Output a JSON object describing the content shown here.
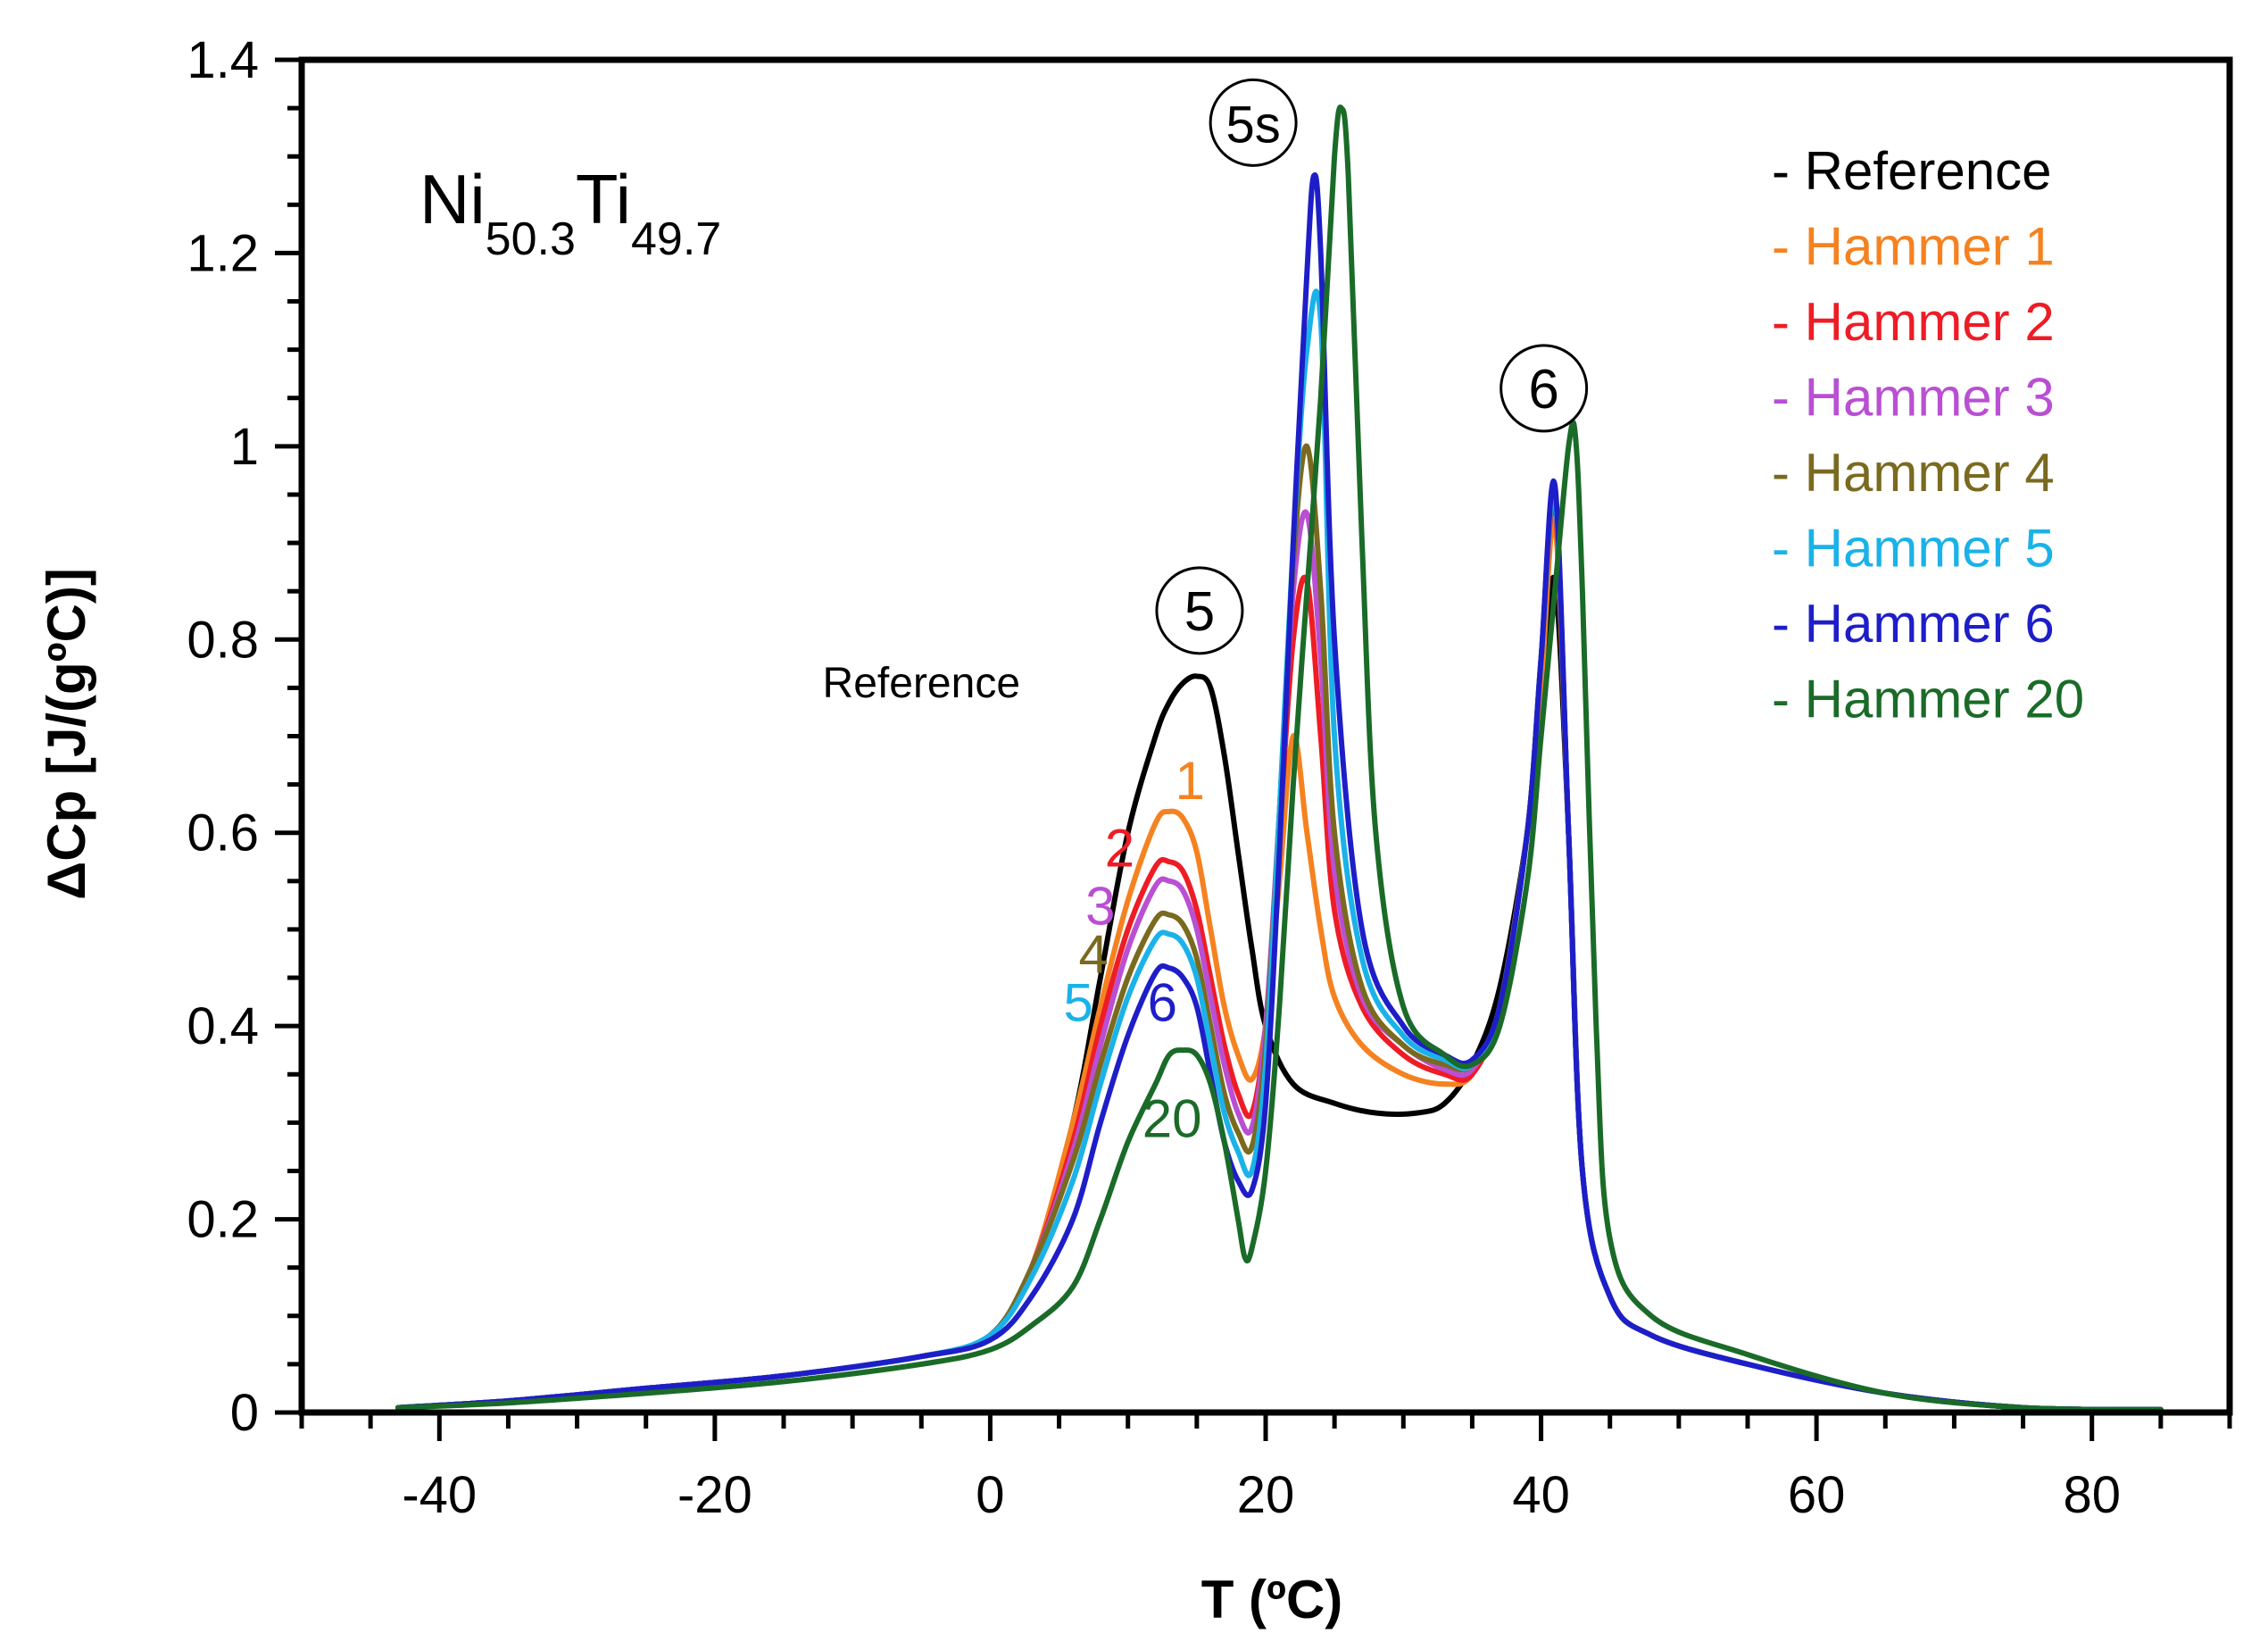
{
  "chart_data": {
    "type": "line",
    "title": "",
    "xlabel": "T (ºC)",
    "ylabel": "ΔCp  [J/(gºC)]",
    "xlim": [
      -50,
      90
    ],
    "ylim": [
      0,
      1.4
    ],
    "x_ticks": [
      -40,
      -20,
      0,
      20,
      40,
      60,
      80
    ],
    "x_tick_labels": [
      "-40",
      "-20",
      "0",
      "20",
      "40",
      "60",
      "80"
    ],
    "y_ticks": [
      0,
      0.2,
      0.4,
      0.6,
      0.8,
      1,
      1.2,
      1.4
    ],
    "y_tick_labels": [
      "0",
      "0.2",
      "0.4",
      "0.6",
      "0.8",
      "1",
      "1.2",
      "1.4"
    ],
    "grid": false,
    "legend_position": "top-right",
    "alloy": {
      "element1": "Ni",
      "sub1": "50.3",
      "element2": "Ti",
      "sub2": "49.7"
    },
    "peak_annotations": [
      {
        "label": "5",
        "x": 15.2,
        "y": 0.83
      },
      {
        "label": "5s",
        "x": 19.1,
        "y": 1.335
      },
      {
        "label": "6",
        "x": 40.2,
        "y": 1.06
      }
    ],
    "series": [
      {
        "name": "- Reference",
        "color": "#000000",
        "curve_label": "Reference",
        "label_x": -5,
        "label_y": 0.74,
        "x": [
          -43,
          -35,
          -25,
          -15,
          -5,
          0,
          3,
          6,
          8,
          10,
          12,
          13,
          14,
          15,
          16,
          17,
          18,
          19,
          20,
          22,
          25,
          28,
          31,
          33,
          35,
          37,
          39,
          40,
          41,
          42,
          43,
          45,
          48,
          55,
          65,
          75,
          85
        ],
        "y": [
          0.005,
          0.012,
          0.025,
          0.038,
          0.058,
          0.08,
          0.15,
          0.3,
          0.45,
          0.6,
          0.7,
          0.735,
          0.755,
          0.762,
          0.75,
          0.68,
          0.58,
          0.48,
          0.4,
          0.34,
          0.32,
          0.31,
          0.31,
          0.32,
          0.36,
          0.44,
          0.6,
          0.75,
          0.86,
          0.6,
          0.25,
          0.12,
          0.08,
          0.05,
          0.02,
          0.005,
          0.003
        ]
      },
      {
        "name": "- Hammer 1",
        "color": "#f58220",
        "curve_label": "1",
        "label_x": 14.5,
        "label_y": 0.635,
        "x": [
          -43,
          -35,
          -25,
          -15,
          -5,
          0,
          3,
          6,
          8,
          10,
          12,
          13,
          14,
          15,
          16,
          17,
          18,
          19,
          20,
          21,
          22,
          23,
          24,
          25,
          27,
          30,
          33,
          35,
          37,
          39,
          40,
          41,
          42,
          43,
          45,
          48,
          55,
          65,
          75,
          85
        ],
        "y": [
          0.005,
          0.012,
          0.025,
          0.038,
          0.058,
          0.08,
          0.15,
          0.3,
          0.42,
          0.53,
          0.61,
          0.622,
          0.615,
          0.58,
          0.5,
          0.42,
          0.37,
          0.345,
          0.4,
          0.55,
          0.7,
          0.6,
          0.5,
          0.43,
          0.38,
          0.35,
          0.34,
          0.35,
          0.42,
          0.6,
          0.75,
          0.92,
          0.6,
          0.25,
          0.12,
          0.08,
          0.05,
          0.02,
          0.005,
          0.003
        ]
      },
      {
        "name": "- Hammer 2",
        "color": "#ee1c25",
        "curve_label": "2",
        "label_x": 9.4,
        "label_y": 0.565,
        "x": [
          -43,
          -35,
          -25,
          -15,
          -5,
          0,
          3,
          6,
          8,
          10,
          12,
          13,
          14,
          15,
          16,
          17,
          18,
          19,
          20,
          21,
          22,
          23,
          24,
          25,
          27,
          30,
          33,
          35,
          37,
          39,
          40,
          41,
          42,
          43,
          45,
          48,
          55,
          65,
          75,
          85
        ],
        "y": [
          0.005,
          0.012,
          0.025,
          0.038,
          0.058,
          0.08,
          0.15,
          0.28,
          0.4,
          0.5,
          0.565,
          0.57,
          0.56,
          0.52,
          0.45,
          0.38,
          0.33,
          0.31,
          0.4,
          0.6,
          0.8,
          0.86,
          0.7,
          0.52,
          0.42,
          0.37,
          0.35,
          0.35,
          0.42,
          0.6,
          0.78,
          0.94,
          0.6,
          0.25,
          0.12,
          0.08,
          0.05,
          0.02,
          0.005,
          0.003
        ]
      },
      {
        "name": "- Hammer 3",
        "color": "#b94fd3",
        "curve_label": "3",
        "label_x": 8.0,
        "label_y": 0.505,
        "x": [
          -43,
          -35,
          -25,
          -15,
          -5,
          0,
          3,
          6,
          8,
          10,
          12,
          13,
          14,
          15,
          16,
          17,
          18,
          19,
          20,
          21,
          22,
          23,
          24,
          25,
          27,
          30,
          33,
          35,
          37,
          39,
          40,
          41,
          42,
          43,
          45,
          48,
          55,
          65,
          75,
          85
        ],
        "y": [
          0.005,
          0.012,
          0.025,
          0.038,
          0.058,
          0.08,
          0.15,
          0.27,
          0.38,
          0.48,
          0.545,
          0.55,
          0.54,
          0.5,
          0.43,
          0.36,
          0.31,
          0.295,
          0.4,
          0.62,
          0.85,
          0.93,
          0.78,
          0.56,
          0.43,
          0.38,
          0.355,
          0.355,
          0.42,
          0.6,
          0.78,
          0.95,
          0.6,
          0.25,
          0.12,
          0.08,
          0.05,
          0.02,
          0.005,
          0.003
        ]
      },
      {
        "name": "- Hammer 4",
        "color": "#7a6a1f",
        "curve_label": "4",
        "label_x": 7.5,
        "label_y": 0.455,
        "x": [
          -43,
          -35,
          -25,
          -15,
          -5,
          0,
          3,
          6,
          8,
          10,
          12,
          13,
          14,
          15,
          16,
          17,
          18,
          19,
          20,
          21,
          22,
          23,
          24,
          25,
          27,
          30,
          33,
          35,
          37,
          39,
          40,
          41,
          42,
          43,
          45,
          48,
          55,
          65,
          75,
          85
        ],
        "y": [
          0.005,
          0.012,
          0.025,
          0.038,
          0.058,
          0.08,
          0.15,
          0.26,
          0.36,
          0.45,
          0.51,
          0.515,
          0.505,
          0.47,
          0.4,
          0.33,
          0.29,
          0.275,
          0.38,
          0.62,
          0.88,
          1.0,
          0.85,
          0.6,
          0.44,
          0.38,
          0.36,
          0.36,
          0.42,
          0.6,
          0.78,
          0.95,
          0.6,
          0.25,
          0.12,
          0.08,
          0.05,
          0.02,
          0.005,
          0.003
        ]
      },
      {
        "name": "- Hammer 5",
        "color": "#1ab2e8",
        "curve_label": "5",
        "label_x": 6.4,
        "label_y": 0.405,
        "x": [
          -43,
          -35,
          -25,
          -15,
          -5,
          0,
          3,
          6,
          8,
          10,
          12,
          13,
          14,
          15,
          16,
          17,
          18,
          19,
          20,
          21,
          22,
          23,
          24,
          25,
          27,
          30,
          33,
          35,
          37,
          39,
          40,
          41,
          42,
          43,
          45,
          48,
          55,
          65,
          75,
          85
        ],
        "y": [
          0.005,
          0.012,
          0.025,
          0.038,
          0.058,
          0.08,
          0.14,
          0.24,
          0.34,
          0.43,
          0.49,
          0.495,
          0.485,
          0.45,
          0.38,
          0.31,
          0.27,
          0.25,
          0.36,
          0.62,
          0.9,
          1.1,
          1.13,
          0.7,
          0.47,
          0.39,
          0.365,
          0.36,
          0.42,
          0.6,
          0.78,
          0.95,
          0.6,
          0.25,
          0.12,
          0.08,
          0.05,
          0.02,
          0.005,
          0.003
        ]
      },
      {
        "name": "- Hammer 6",
        "color": "#1e1ec8",
        "curve_label": "6",
        "label_x": 12.5,
        "label_y": 0.405,
        "x": [
          -43,
          -35,
          -25,
          -15,
          -5,
          0,
          3,
          6,
          8,
          10,
          12,
          13,
          14,
          15,
          16,
          17,
          18,
          19,
          20,
          21,
          22,
          23,
          23.5,
          24,
          25,
          27,
          30,
          33,
          35,
          37,
          39,
          40,
          41,
          42,
          43,
          45,
          48,
          55,
          65,
          75,
          85
        ],
        "y": [
          0.005,
          0.012,
          0.025,
          0.038,
          0.058,
          0.075,
          0.12,
          0.2,
          0.3,
          0.39,
          0.455,
          0.46,
          0.45,
          0.42,
          0.35,
          0.28,
          0.24,
          0.23,
          0.32,
          0.58,
          0.9,
          1.18,
          1.28,
          1.2,
          0.8,
          0.5,
          0.4,
          0.37,
          0.365,
          0.42,
          0.6,
          0.78,
          0.96,
          0.6,
          0.25,
          0.12,
          0.08,
          0.05,
          0.02,
          0.005,
          0.003
        ]
      },
      {
        "name": "- Hammer 20",
        "color": "#1a6b28",
        "curve_label": "20",
        "label_x": 13.2,
        "label_y": 0.285,
        "x": [
          -43,
          -35,
          -25,
          -15,
          -5,
          0,
          3,
          6,
          8,
          10,
          12,
          13,
          14,
          15,
          16,
          17,
          18,
          18.5,
          19,
          20,
          21,
          22,
          23,
          24,
          25,
          25.5,
          26,
          27,
          28,
          30,
          33,
          35,
          37,
          39,
          40,
          41,
          42,
          42.5,
          43,
          44,
          45,
          48,
          55,
          65,
          75,
          85
        ],
        "y": [
          0.005,
          0.01,
          0.02,
          0.032,
          0.05,
          0.065,
          0.09,
          0.13,
          0.2,
          0.28,
          0.34,
          0.37,
          0.375,
          0.37,
          0.34,
          0.28,
          0.2,
          0.16,
          0.17,
          0.25,
          0.42,
          0.65,
          0.85,
          1.05,
          1.3,
          1.35,
          1.28,
          0.9,
          0.6,
          0.42,
          0.37,
          0.36,
          0.4,
          0.55,
          0.7,
          0.85,
          1.0,
          1.01,
          0.85,
          0.4,
          0.18,
          0.1,
          0.06,
          0.02,
          0.005,
          0.003
        ]
      }
    ]
  }
}
